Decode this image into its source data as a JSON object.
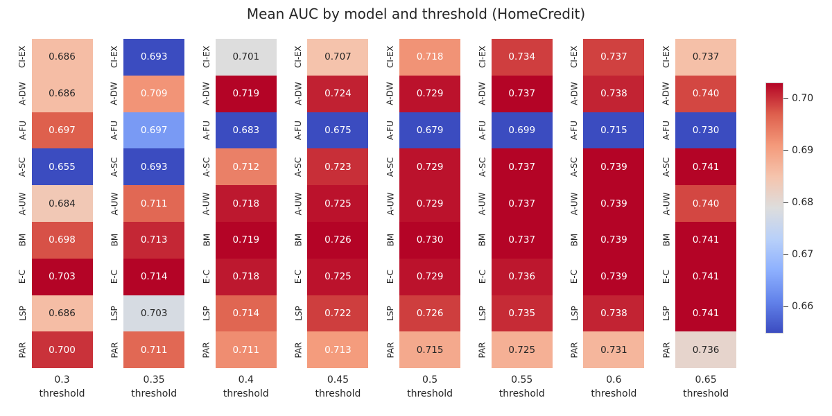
{
  "title": "Mean AUC by model and threshold (HomeCredit)",
  "chart_data": {
    "type": "heatmap",
    "title": "Mean AUC by model and threshold (HomeCredit)",
    "xlabel": "threshold",
    "rows": [
      "CI-EX",
      "A-DW",
      "A-FU",
      "A-SC",
      "A-UW",
      "BM",
      "E-C",
      "LSP",
      "PAR"
    ],
    "colormap": "coolwarm",
    "panels": [
      {
        "threshold": "0.3",
        "values": [
          "0.686",
          "0.686",
          "0.697",
          "0.655",
          "0.684",
          "0.698",
          "0.703",
          "0.686",
          "0.700"
        ]
      },
      {
        "threshold": "0.35",
        "values": [
          "0.693",
          "0.709",
          "0.697",
          "0.693",
          "0.711",
          "0.713",
          "0.714",
          "0.703",
          "0.711"
        ]
      },
      {
        "threshold": "0.4",
        "values": [
          "0.701",
          "0.719",
          "0.683",
          "0.712",
          "0.718",
          "0.719",
          "0.718",
          "0.714",
          "0.711"
        ]
      },
      {
        "threshold": "0.45",
        "values": [
          "0.707",
          "0.724",
          "0.675",
          "0.723",
          "0.725",
          "0.726",
          "0.725",
          "0.722",
          "0.713"
        ]
      },
      {
        "threshold": "0.5",
        "values": [
          "0.718",
          "0.729",
          "0.679",
          "0.729",
          "0.729",
          "0.730",
          "0.729",
          "0.726",
          "0.715"
        ]
      },
      {
        "threshold": "0.55",
        "values": [
          "0.734",
          "0.737",
          "0.699",
          "0.737",
          "0.737",
          "0.737",
          "0.736",
          "0.735",
          "0.725"
        ]
      },
      {
        "threshold": "0.6",
        "values": [
          "0.737",
          "0.738",
          "0.715",
          "0.739",
          "0.739",
          "0.739",
          "0.739",
          "0.738",
          "0.731"
        ]
      },
      {
        "threshold": "0.65",
        "values": [
          "0.737",
          "0.740",
          "0.730",
          "0.741",
          "0.740",
          "0.741",
          "0.741",
          "0.741",
          "0.736"
        ]
      }
    ],
    "colorbar": {
      "vmin": 0.655,
      "vmax": 0.703,
      "ticks": [
        "0.70",
        "0.69",
        "0.68",
        "0.67",
        "0.66"
      ]
    }
  },
  "colors": {
    "background": "#ffffff",
    "text_dark": "#262626",
    "text_light": "#ffffff",
    "cmap_low": "#3b4cc0",
    "cmap_mid": "#dddddd",
    "cmap_high": "#b40426",
    "colorbar_border": "#c9c9c9"
  }
}
